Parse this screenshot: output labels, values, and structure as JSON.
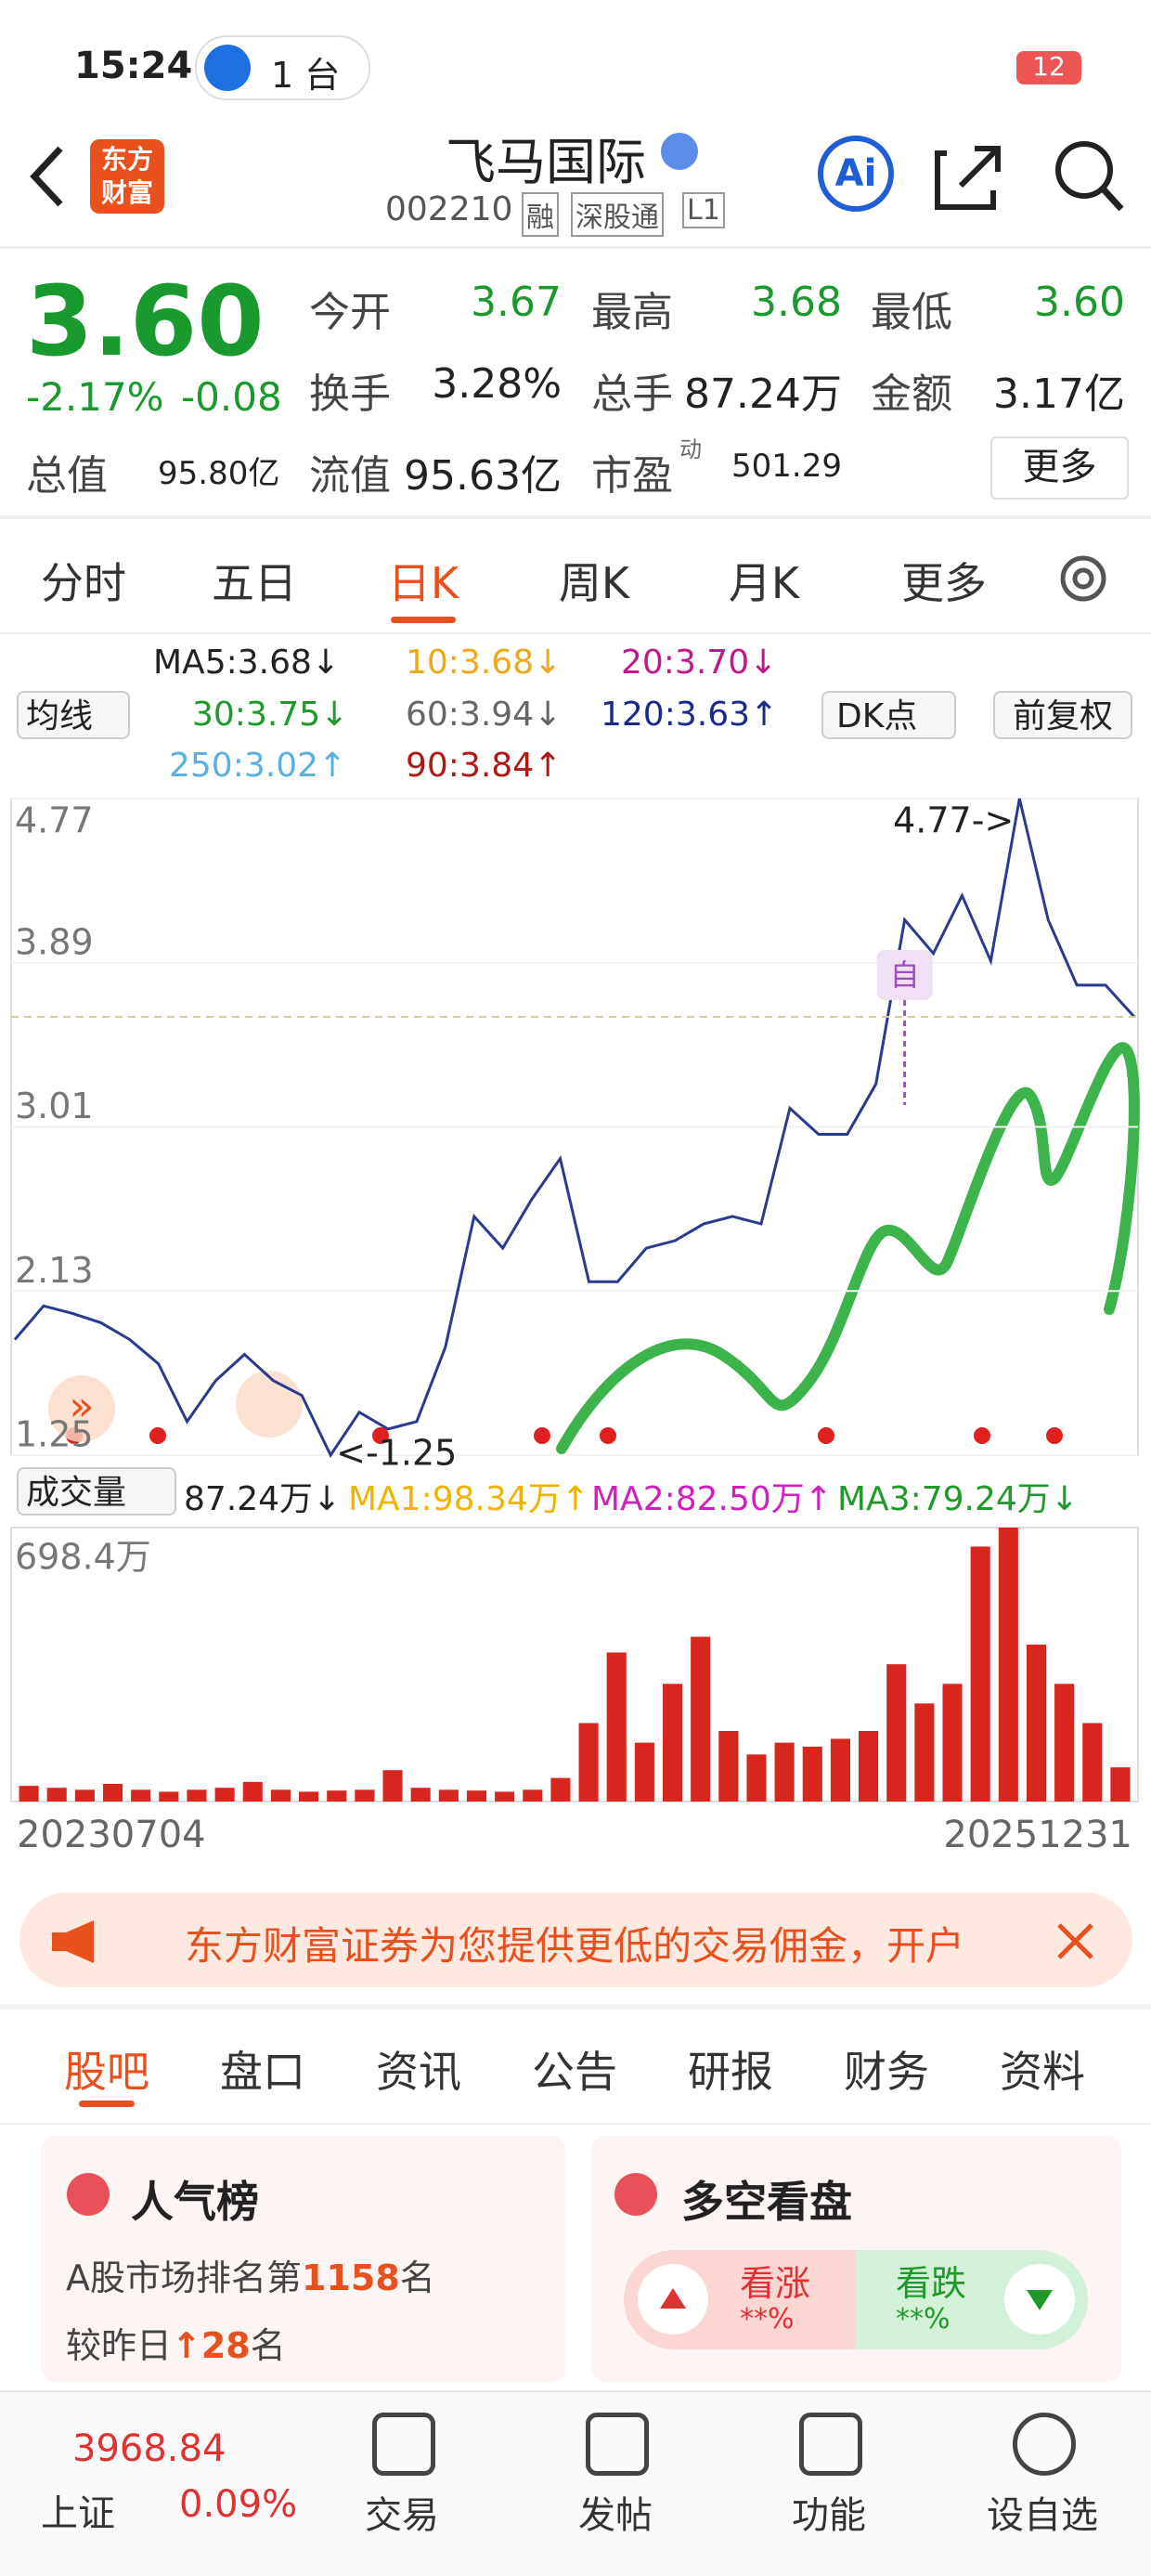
{
  "status": {
    "time": "15:24",
    "device": "1 台",
    "battery": "12"
  },
  "header": {
    "logo": "东方财富",
    "title": "飞马国际",
    "code": "002210",
    "tags": [
      "融",
      "深股通",
      "L1"
    ]
  },
  "quote": {
    "price": "3.60",
    "change_pct": "-2.17%",
    "change": "-0.08",
    "total_value_label": "总值",
    "total_value": "95.80亿",
    "stats": [
      [
        {
          "label": "今开",
          "value": "3.67"
        },
        {
          "label": "最高",
          "value": "3.68"
        },
        {
          "label": "最低",
          "value": "3.60"
        }
      ],
      [
        {
          "label": "换手",
          "value": "3.28%"
        },
        {
          "label": "总手",
          "value": "87.24万"
        },
        {
          "label": "金额",
          "value": "3.17亿"
        }
      ],
      [
        {
          "label": "流值",
          "value": "95.63亿"
        },
        {
          "label": "市盈",
          "sup": "动",
          "value": "501.29"
        }
      ]
    ],
    "more": "更多"
  },
  "tabs": [
    "分时",
    "五日",
    "日K",
    "周K",
    "月K",
    "更多"
  ],
  "ma": {
    "selector": "均线",
    "dk": "DK点",
    "adjust": "前复权",
    "items": [
      {
        "text": "MA5:3.68↓",
        "color": "#222222"
      },
      {
        "text": "10:3.68↓",
        "color": "#f0a818"
      },
      {
        "text": "20:3.70↓",
        "color": "#c0188a"
      },
      {
        "text": "30:3.75↓",
        "color": "#1f9a2a"
      },
      {
        "text": "60:3.94↓",
        "color": "#666666"
      },
      {
        "text": "120:3.63↑",
        "color": "#1a2a8c"
      },
      {
        "text": "250:3.02↑",
        "color": "#5ab0e0"
      },
      {
        "text": "90:3.84↑",
        "color": "#b01818"
      }
    ]
  },
  "volume_legend": {
    "selector": "成交量",
    "items": [
      {
        "text": "87.24万↓",
        "color": "#222222"
      },
      {
        "text": "MA1:98.34万↑",
        "color": "#f0b400"
      },
      {
        "text": "MA2:82.50万↑",
        "color": "#d020c0"
      },
      {
        "text": "MA3:79.24万↓",
        "color": "#1f9a2a"
      }
    ]
  },
  "chart_data": [
    {
      "type": "line",
      "color": "#2a3a8f",
      "ylim": [
        1.25,
        4.77
      ],
      "yticks": [
        4.77,
        3.89,
        3.01,
        2.13,
        1.25
      ],
      "grid": true,
      "values": [
        1.87,
        2.05,
        2.01,
        1.96,
        1.87,
        1.74,
        1.43,
        1.65,
        1.79,
        1.65,
        1.57,
        1.25,
        1.48,
        1.39,
        1.43,
        1.83,
        2.53,
        2.36,
        2.62,
        2.84,
        2.18,
        2.18,
        2.36,
        2.4,
        2.49,
        2.53,
        2.49,
        3.11,
        2.97,
        2.97,
        3.24,
        4.12,
        3.94,
        4.25,
        3.9,
        4.77,
        4.12,
        3.77,
        3.77,
        3.6
      ],
      "high_label": "4.77->",
      "low_label": "<-1.25",
      "marker": "自"
    },
    {
      "type": "bar",
      "color": "#d8261f",
      "ylim": [
        0,
        698.4
      ],
      "yticks": [
        {
          "value": 698.4,
          "label": "698.4万"
        }
      ],
      "values": [
        40,
        35,
        30,
        45,
        30,
        25,
        30,
        35,
        50,
        30,
        25,
        28,
        30,
        80,
        35,
        30,
        28,
        25,
        30,
        60,
        200,
        380,
        150,
        300,
        420,
        180,
        120,
        150,
        140,
        160,
        180,
        350,
        250,
        300,
        650,
        698.4,
        400,
        300,
        200,
        87.24
      ],
      "x_labels": [
        "20230704",
        "20251231"
      ]
    }
  ],
  "banner": "东方财富证券为您提供更低的交易佣金，开户",
  "sections": [
    "股吧",
    "盘口",
    "资讯",
    "公告",
    "研报",
    "财务",
    "资料"
  ],
  "cards": {
    "popular": {
      "title": "人气榜",
      "rank_prefix": "A股市场排名第",
      "rank": "1158",
      "rank_suffix": "名",
      "change_prefix": "较昨日",
      "change": "↑28",
      "change_suffix": "名"
    },
    "sentiment": {
      "title": "多空看盘",
      "bull": "看涨",
      "bull_value": "**%",
      "bear": "看跌",
      "bear_value": "**%"
    }
  },
  "bottom": {
    "index_value": "3968.84",
    "index_name": "上证",
    "index_change": "0.09%",
    "items": [
      "交易",
      "发帖",
      "功能",
      "设自选"
    ]
  }
}
